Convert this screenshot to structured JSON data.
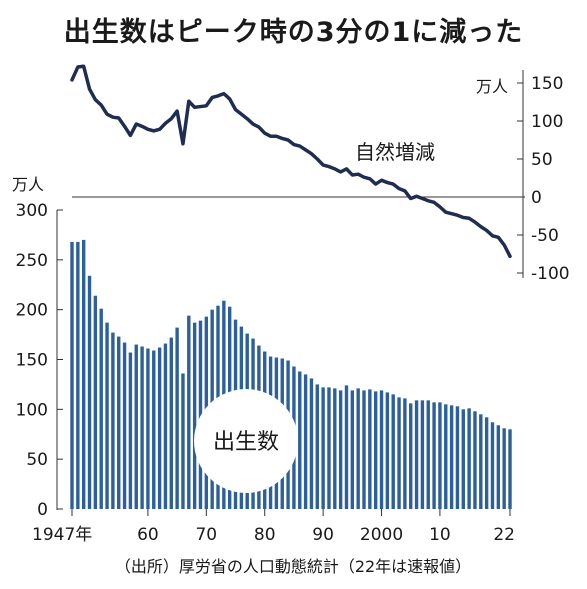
{
  "title": "出生数はピーク時の3分の1に減った",
  "source": "（出所）厚労省の人口動態統計（22年は速報値）",
  "colors": {
    "bar": "#2c5f9c",
    "line": "#1f2d52",
    "zero_line": "#333333",
    "circle": "#ffffff"
  },
  "chart_data": [
    {
      "type": "bar",
      "series_label": "出生数",
      "unit": "万人",
      "ylim": [
        0,
        300
      ],
      "yticks": [
        "300",
        "250",
        "200",
        "150",
        "100",
        "50",
        "0"
      ],
      "xticks": [
        "1947年",
        "60",
        "70",
        "80",
        "90",
        "2000",
        "10",
        "22"
      ],
      "x": [
        1947,
        1948,
        1949,
        1950,
        1951,
        1952,
        1953,
        1954,
        1955,
        1956,
        1957,
        1958,
        1959,
        1960,
        1961,
        1962,
        1963,
        1964,
        1965,
        1966,
        1967,
        1968,
        1969,
        1970,
        1971,
        1972,
        1973,
        1974,
        1975,
        1976,
        1977,
        1978,
        1979,
        1980,
        1981,
        1982,
        1983,
        1984,
        1985,
        1986,
        1987,
        1988,
        1989,
        1990,
        1991,
        1992,
        1993,
        1994,
        1995,
        1996,
        1997,
        1998,
        1999,
        2000,
        2001,
        2002,
        2003,
        2004,
        2005,
        2006,
        2007,
        2008,
        2009,
        2010,
        2011,
        2012,
        2013,
        2014,
        2015,
        2016,
        2017,
        2018,
        2019,
        2020,
        2021,
        2022
      ],
      "values": [
        268,
        268,
        270,
        234,
        214,
        201,
        187,
        177,
        173,
        167,
        157,
        165,
        163,
        161,
        159,
        162,
        166,
        172,
        182,
        136,
        194,
        187,
        189,
        193,
        200,
        204,
        209,
        203,
        190,
        183,
        176,
        171,
        164,
        158,
        153,
        152,
        151,
        149,
        143,
        138,
        135,
        131,
        125,
        122,
        122,
        121,
        119,
        124,
        119,
        121,
        119,
        120,
        118,
        119,
        117,
        115,
        112,
        111,
        106,
        109,
        109,
        109,
        107,
        107,
        105,
        104,
        103,
        100,
        101,
        98,
        95,
        92,
        87,
        84,
        81,
        80
      ]
    },
    {
      "type": "line",
      "series_label": "自然増減",
      "unit": "万人",
      "ylim": [
        -100,
        170
      ],
      "yticks": [
        "150",
        "100",
        "50",
        "0",
        "-50",
        "-100"
      ],
      "x": [
        1947,
        1948,
        1949,
        1950,
        1951,
        1952,
        1953,
        1954,
        1955,
        1956,
        1957,
        1958,
        1959,
        1960,
        1961,
        1962,
        1963,
        1964,
        1965,
        1966,
        1967,
        1968,
        1969,
        1970,
        1971,
        1972,
        1973,
        1974,
        1975,
        1976,
        1977,
        1978,
        1979,
        1980,
        1981,
        1982,
        1983,
        1984,
        1985,
        1986,
        1987,
        1988,
        1989,
        1990,
        1991,
        1992,
        1993,
        1994,
        1995,
        1996,
        1997,
        1998,
        1999,
        2000,
        2001,
        2002,
        2003,
        2004,
        2005,
        2006,
        2007,
        2008,
        2009,
        2010,
        2011,
        2012,
        2013,
        2014,
        2015,
        2016,
        2017,
        2018,
        2019,
        2020,
        2021,
        2022
      ],
      "values": [
        154,
        171,
        172,
        142,
        128,
        121,
        109,
        105,
        104,
        93,
        81,
        96,
        93,
        89,
        87,
        89,
        97,
        103,
        113,
        70,
        126,
        118,
        119,
        120,
        131,
        133,
        136,
        129,
        115,
        109,
        103,
        96,
        92,
        84,
        80,
        80,
        77,
        75,
        69,
        67,
        62,
        57,
        50,
        42,
        40,
        37,
        33,
        37,
        29,
        30,
        26,
        24,
        17,
        22,
        19,
        17,
        11,
        8,
        -2,
        1,
        -2,
        -5,
        -7,
        -13,
        -20,
        -22,
        -24,
        -27,
        -28,
        -33,
        -39,
        -44,
        -51,
        -53,
        -63,
        -78
      ]
    }
  ]
}
